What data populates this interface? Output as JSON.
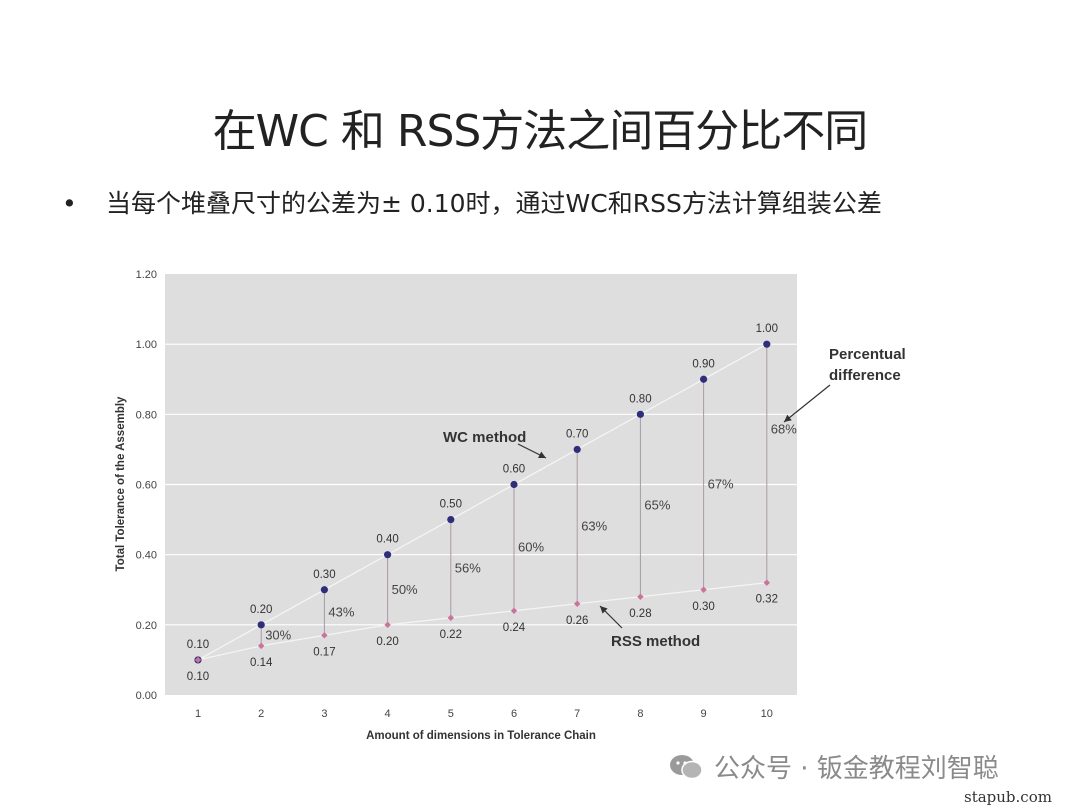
{
  "slide": {
    "title": "在WC 和 RSS方法之间百分比不同",
    "bullet_marker": "•",
    "bullet": "当每个堆叠尺寸的公差为± 0.10时，通过WC和RSS方法计算组装公差"
  },
  "chart_data": {
    "type": "line",
    "xlabel": "Amount of dimensions in Tolerance Chain",
    "ylabel": "Total Tolerance of the Assembly",
    "x": [
      1,
      2,
      3,
      4,
      5,
      6,
      7,
      8,
      9,
      10
    ],
    "ylim": [
      0,
      1.2
    ],
    "yticks": [
      "0.00",
      "0.20",
      "0.40",
      "0.60",
      "0.80",
      "1.00",
      "1.20"
    ],
    "grid": true,
    "series": [
      {
        "name": "WC method",
        "color": "#2e2e7a",
        "values": [
          0.1,
          0.2,
          0.3,
          0.4,
          0.5,
          0.6,
          0.7,
          0.8,
          0.9,
          1.0
        ],
        "labels": [
          "0.10",
          "0.20",
          "0.30",
          "0.40",
          "0.50",
          "0.60",
          "0.70",
          "0.80",
          "0.90",
          "1.00"
        ]
      },
      {
        "name": "RSS method",
        "color": "#c9739c",
        "values": [
          0.1,
          0.14,
          0.17,
          0.2,
          0.22,
          0.24,
          0.26,
          0.28,
          0.3,
          0.32
        ],
        "labels": [
          "0.10",
          "0.14",
          "0.17",
          "0.20",
          "0.22",
          "0.24",
          "0.26",
          "0.28",
          "0.30",
          "0.32"
        ]
      }
    ],
    "percent_differences": [
      "30%",
      "43%",
      "50%",
      "56%",
      "60%",
      "63%",
      "65%",
      "67%",
      "68%"
    ],
    "annotations": {
      "percentual": [
        "Percentual",
        "difference"
      ]
    },
    "plot_background": "#dedede"
  },
  "watermark": {
    "text": "公众号 · 钣金教程刘智聪"
  },
  "site": "stapub.com"
}
